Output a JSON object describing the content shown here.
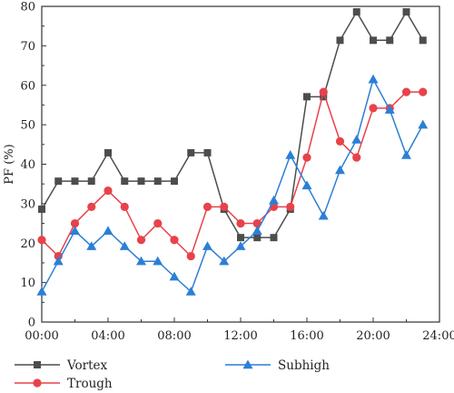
{
  "chart_data": {
    "type": "line",
    "title": "",
    "xlabel": "",
    "ylabel": "PF (%)",
    "xlim": [
      0,
      24
    ],
    "ylim": [
      0,
      80
    ],
    "x_ticks": [
      "00:00",
      "04:00",
      "08:00",
      "12:00",
      "16:00",
      "20:00",
      "24:00"
    ],
    "y_ticks": [
      "0",
      "10",
      "20",
      "30",
      "40",
      "50",
      "60",
      "70",
      "80"
    ],
    "x": [
      0,
      1,
      2,
      3,
      4,
      5,
      6,
      7,
      8,
      9,
      10,
      11,
      12,
      13,
      14,
      15,
      16,
      17,
      18,
      19,
      20,
      21,
      22,
      23
    ],
    "grid": false,
    "legend_position": "bottom",
    "series": [
      {
        "name": "Vortex",
        "marker": "square",
        "color": "#4d4d4d",
        "values": [
          28.6,
          35.7,
          35.7,
          35.7,
          42.9,
          35.7,
          35.7,
          35.7,
          35.7,
          42.9,
          42.9,
          28.6,
          21.4,
          21.4,
          21.4,
          28.6,
          57.1,
          57.1,
          71.4,
          78.6,
          71.4,
          71.4,
          78.6,
          71.4
        ]
      },
      {
        "name": "Trough",
        "marker": "circle",
        "color": "#e8424a",
        "values": [
          20.8,
          16.7,
          25.0,
          29.2,
          33.3,
          29.2,
          20.8,
          25.0,
          20.8,
          16.7,
          29.2,
          29.2,
          25.0,
          25.0,
          29.2,
          29.2,
          41.7,
          58.3,
          45.8,
          41.7,
          54.2,
          54.2,
          58.3,
          58.3
        ]
      },
      {
        "name": "Subhigh",
        "marker": "triangle",
        "color": "#2b7fd6",
        "values": [
          7.7,
          15.4,
          23.1,
          19.2,
          23.1,
          19.2,
          15.4,
          15.4,
          11.5,
          7.7,
          19.2,
          15.4,
          19.2,
          23.1,
          30.8,
          42.3,
          34.6,
          26.9,
          38.5,
          46.2,
          61.5,
          53.8,
          42.3,
          50.0
        ]
      }
    ]
  }
}
